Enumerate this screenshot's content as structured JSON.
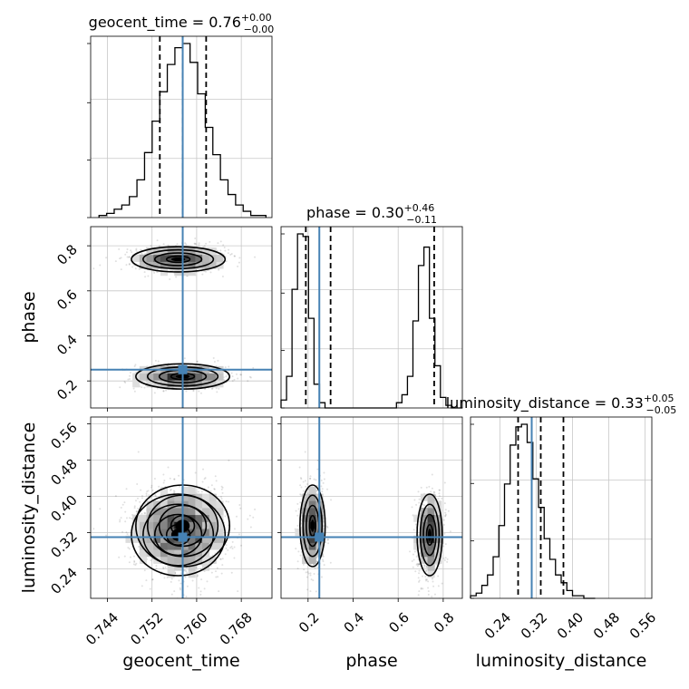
{
  "chart_data": {
    "type": "corner",
    "parameters": [
      "geocent_time",
      "phase",
      "luminosity_distance"
    ],
    "axis_labels": [
      "geocent_time",
      "phase",
      "luminosity_distance"
    ],
    "titles": [
      {
        "param": "geocent_time",
        "median": "0.76",
        "plus": "+0.00",
        "minus": "−0.00"
      },
      {
        "param": "phase",
        "median": "0.30",
        "plus": "+0.46",
        "minus": "−0.11"
      },
      {
        "param": "luminosity_distance",
        "median": "0.33",
        "plus": "+0.05",
        "minus": "−0.05"
      }
    ],
    "ranges": {
      "geocent_time": [
        0.741,
        0.7735
      ],
      "phase": [
        0.08,
        0.885
      ],
      "luminosity_distance": [
        0.175,
        0.575
      ]
    },
    "ticks": {
      "geocent_time": {
        "values": [
          0.744,
          0.752,
          0.76,
          0.768
        ],
        "labels": [
          "0.744",
          "0.752",
          "0.760",
          "0.768"
        ]
      },
      "phase": {
        "values": [
          0.2,
          0.4,
          0.6,
          0.8
        ],
        "labels": [
          "0.2",
          "0.4",
          "0.6",
          "0.8"
        ]
      },
      "luminosity_distance": {
        "values": [
          0.24,
          0.32,
          0.4,
          0.48,
          0.56
        ],
        "labels": [
          "0.24",
          "0.32",
          "0.40",
          "0.48",
          "0.56"
        ]
      }
    },
    "truths": {
      "geocent_time": 0.7575,
      "phase": 0.25,
      "luminosity_distance": 0.31
    },
    "quantiles": {
      "geocent_time": [
        0.7534,
        0.7575,
        0.7617
      ],
      "phase": [
        0.19,
        0.3,
        0.76
      ],
      "luminosity_distance": [
        0.28,
        0.33,
        0.38
      ]
    },
    "hist_geocent_time": {
      "edges_start": 0.7425,
      "bin_width": 0.00136,
      "counts": [
        1,
        2,
        4,
        6,
        10,
        18,
        31,
        46,
        60,
        73,
        81,
        83,
        74,
        59,
        43,
        30,
        18,
        11,
        6,
        3,
        1,
        1
      ]
    },
    "hist_phase": {
      "edges_start": 0.08,
      "bin_width": 0.0244,
      "counts": [
        3,
        12,
        45,
        66,
        65,
        34,
        9,
        2,
        0,
        0,
        0,
        0,
        0,
        0,
        0,
        0,
        0,
        0,
        0,
        0,
        0,
        2,
        5,
        12,
        33,
        54,
        61,
        34,
        16,
        4,
        1,
        0,
        0
      ]
    },
    "hist_luminosity_distance": {
      "edges_start": 0.175,
      "bin_width": 0.0125,
      "counts": [
        1,
        2,
        5,
        9,
        16,
        28,
        44,
        59,
        66,
        67,
        60,
        46,
        35,
        23,
        15,
        9,
        6,
        3,
        1,
        1,
        0,
        0
      ]
    },
    "modes": [
      {
        "weight": 0.5,
        "geocent_time": 0.7575,
        "phase": 0.22,
        "luminosity_distance": 0.335,
        "sd": {
          "geocent_time": 0.0042,
          "phase": 0.028,
          "luminosity_distance": 0.045
        }
      },
      {
        "weight": 0.5,
        "geocent_time": 0.7567,
        "phase": 0.74,
        "luminosity_distance": 0.315,
        "sd": {
          "geocent_time": 0.0042,
          "phase": 0.028,
          "luminosity_distance": 0.045
        }
      }
    ],
    "grid": true
  }
}
